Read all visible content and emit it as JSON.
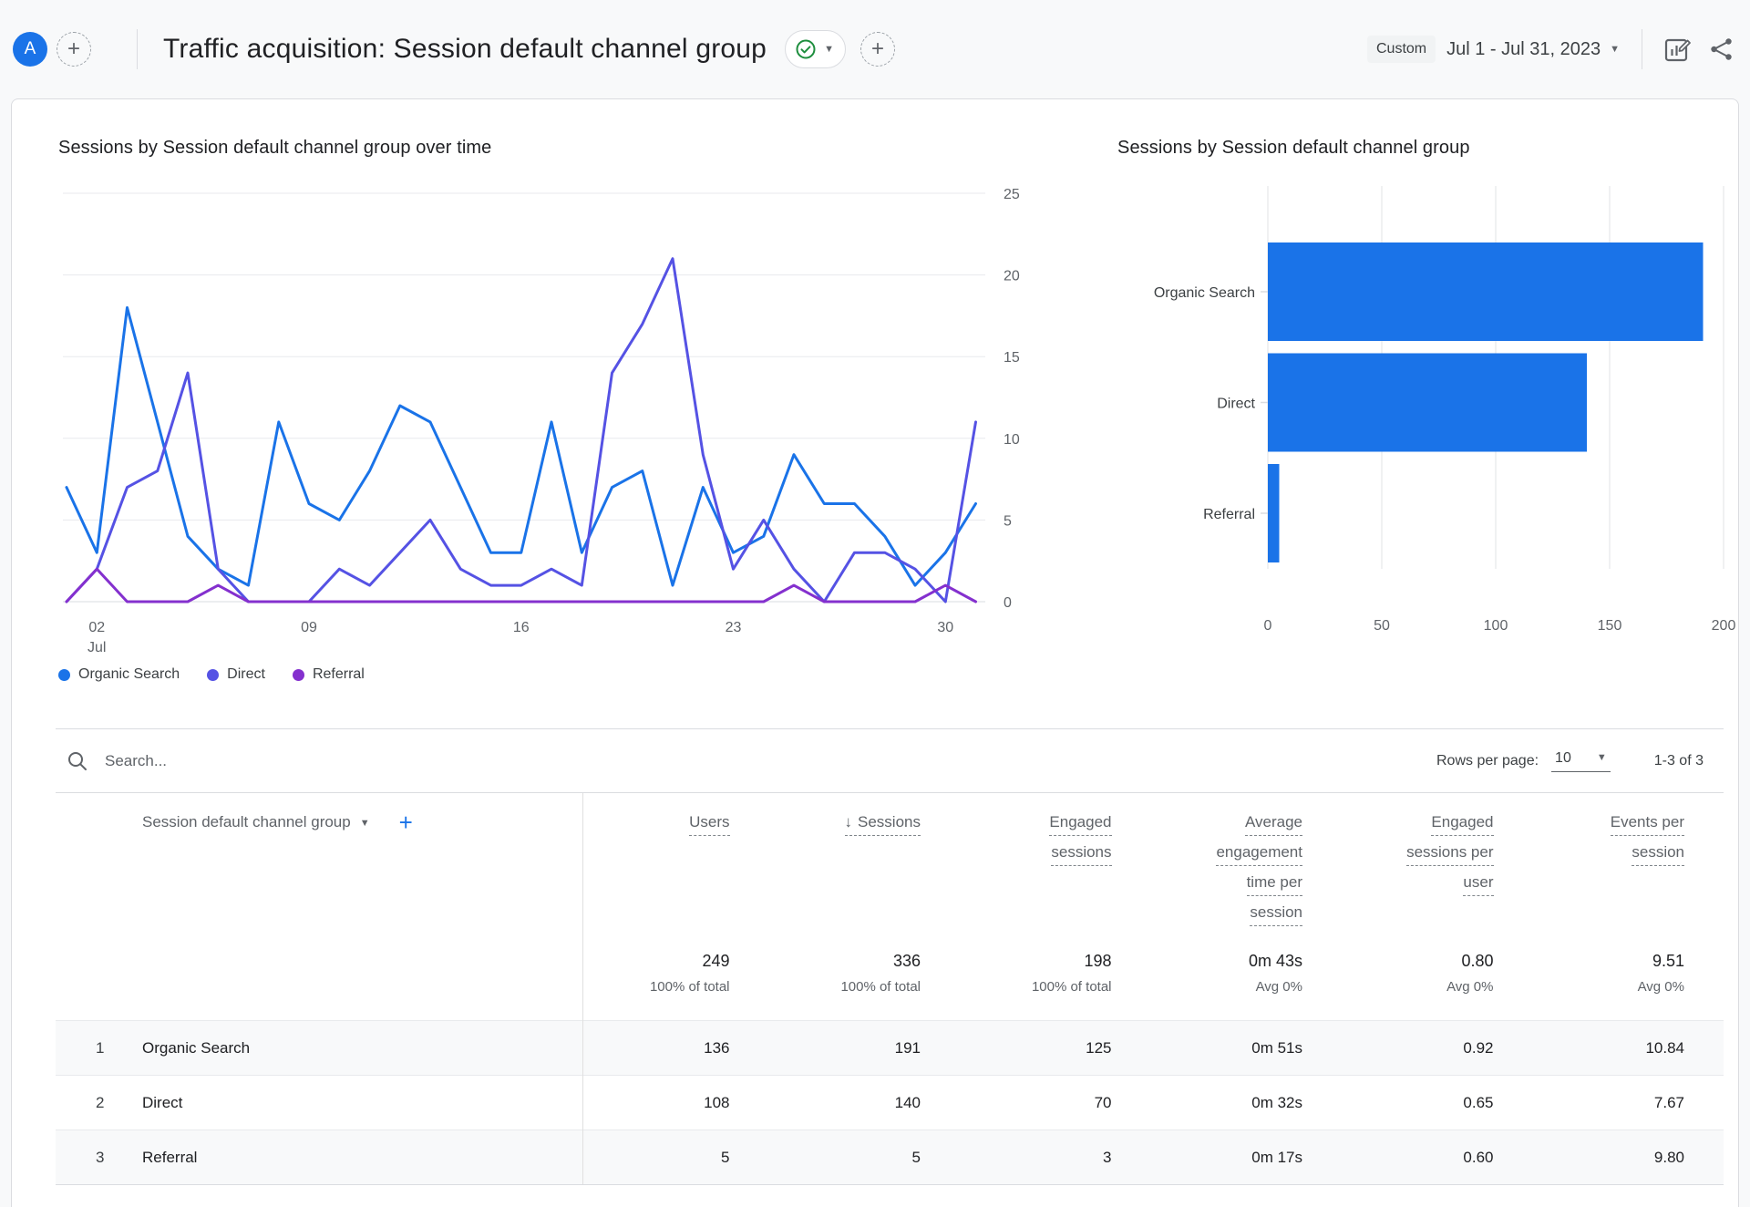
{
  "header": {
    "avatar_letter": "A",
    "title": "Traffic acquisition: Session default channel group",
    "date_preset": "Custom",
    "date_range": "Jul 1 - Jul 31, 2023"
  },
  "icons": {
    "plus": "+",
    "caret_down": "▼",
    "sort_descending_arrow": "↓",
    "search": "magnifier",
    "status_check": "green-circle-check",
    "edit_report": "chart-with-pencil",
    "share": "share-nodes"
  },
  "colors": {
    "organic_search": "#1a73e8",
    "direct": "#5552e4",
    "referral": "#8430ce",
    "bar_fill": "#1a73e8",
    "gridline": "#e8eaed",
    "baseline": "#dadce0",
    "axis_text": "#5f6368",
    "check_green": "#1e8e3e",
    "accent_blue": "#1a73e8"
  },
  "chart_data": [
    {
      "type": "line",
      "title": "Sessions by Session default channel group over time",
      "x_unit": "day of July 2023",
      "x": [
        1,
        2,
        3,
        4,
        5,
        6,
        7,
        8,
        9,
        10,
        11,
        12,
        13,
        14,
        15,
        16,
        17,
        18,
        19,
        20,
        21,
        22,
        23,
        24,
        25,
        26,
        27,
        28,
        29,
        30,
        31
      ],
      "x_ticks": [
        {
          "day": 2,
          "label": "02",
          "sublabel": "Jul"
        },
        {
          "day": 9,
          "label": "09"
        },
        {
          "day": 16,
          "label": "16"
        },
        {
          "day": 23,
          "label": "23"
        },
        {
          "day": 30,
          "label": "30"
        }
      ],
      "ylim": [
        0,
        25
      ],
      "y_ticks": [
        0,
        5,
        10,
        15,
        20,
        25
      ],
      "grid": true,
      "legend_position": "bottom",
      "series": [
        {
          "name": "Organic Search",
          "color": "#1a73e8",
          "values": [
            7,
            3,
            18,
            11,
            4,
            2,
            1,
            11,
            6,
            5,
            8,
            12,
            11,
            7,
            3,
            3,
            11,
            3,
            7,
            8,
            1,
            7,
            3,
            4,
            9,
            6,
            6,
            4,
            1,
            3,
            6
          ]
        },
        {
          "name": "Direct",
          "color": "#5552e4",
          "values": [
            0,
            2,
            7,
            8,
            14,
            2,
            0,
            0,
            0,
            2,
            1,
            3,
            5,
            2,
            1,
            1,
            2,
            1,
            14,
            17,
            21,
            9,
            2,
            5,
            2,
            0,
            3,
            3,
            2,
            0,
            11
          ]
        },
        {
          "name": "Referral",
          "color": "#8430ce",
          "values": [
            0,
            2,
            0,
            0,
            0,
            1,
            0,
            0,
            0,
            0,
            0,
            0,
            0,
            0,
            0,
            0,
            0,
            0,
            0,
            0,
            0,
            0,
            0,
            0,
            1,
            0,
            0,
            0,
            0,
            1,
            0
          ]
        }
      ]
    },
    {
      "type": "bar",
      "title": "Sessions by Session default channel group",
      "orientation": "horizontal",
      "categories": [
        "Organic Search",
        "Direct",
        "Referral"
      ],
      "values": [
        191,
        140,
        5
      ],
      "xlim": [
        0,
        200
      ],
      "x_ticks": [
        0,
        50,
        100,
        150,
        200
      ],
      "grid": true,
      "bar_color": "#1a73e8"
    }
  ],
  "table": {
    "search_placeholder": "Search...",
    "rows_per_page_label": "Rows per page:",
    "rows_per_page_value": "10",
    "range_label": "1-3 of 3",
    "dimension_header": "Session default channel group",
    "metric_headers": [
      [
        "Users"
      ],
      [
        "Sessions"
      ],
      [
        "Engaged",
        "sessions"
      ],
      [
        "Average",
        "engagement",
        "time per",
        "session"
      ],
      [
        "Engaged",
        "sessions per",
        "user"
      ],
      [
        "Events per",
        "session"
      ]
    ],
    "sorted_column_index": 1,
    "totals": {
      "values": [
        "249",
        "336",
        "198",
        "0m 43s",
        "0.80",
        "9.51"
      ],
      "subs": [
        "100% of total",
        "100% of total",
        "100% of total",
        "Avg 0%",
        "Avg 0%",
        "Avg 0%"
      ]
    },
    "rows": [
      {
        "index": "1",
        "channel": "Organic Search",
        "values": [
          "136",
          "191",
          "125",
          "0m 51s",
          "0.92",
          "10.84"
        ]
      },
      {
        "index": "2",
        "channel": "Direct",
        "values": [
          "108",
          "140",
          "70",
          "0m 32s",
          "0.65",
          "7.67"
        ]
      },
      {
        "index": "3",
        "channel": "Referral",
        "values": [
          "5",
          "5",
          "3",
          "0m 17s",
          "0.60",
          "9.80"
        ]
      }
    ]
  }
}
